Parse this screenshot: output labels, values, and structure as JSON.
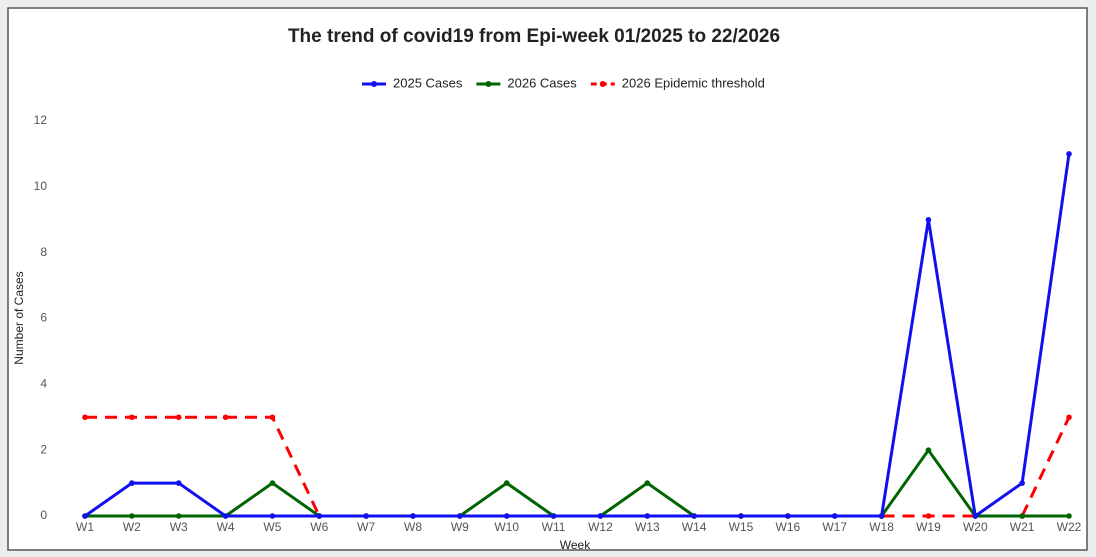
{
  "chart_data": {
    "type": "line",
    "title": "The trend of covid19 from Epi-week 01/2025 to 22/2026",
    "x_label": "Week",
    "y_label": "Number of Cases",
    "categories": [
      "W1",
      "W2",
      "W3",
      "W4",
      "W5",
      "W6",
      "W7",
      "W8",
      "W9",
      "W10",
      "W11",
      "W12",
      "W13",
      "W14",
      "W15",
      "W16",
      "W17",
      "W18",
      "W19",
      "W20",
      "W21",
      "W22"
    ],
    "series": [
      {
        "name": "2025 Cases",
        "color": "#1010f0",
        "linestyle": "solid",
        "values": [
          0,
          1,
          1,
          0,
          0,
          0,
          0,
          0,
          0,
          0,
          0,
          0,
          0,
          0,
          0,
          0,
          0,
          0,
          9,
          0,
          1,
          11
        ]
      },
      {
        "name": "2026 Cases",
        "color": "#006400",
        "linestyle": "solid",
        "values": [
          0,
          0,
          0,
          0,
          1,
          0,
          0,
          0,
          0,
          1,
          0,
          0,
          1,
          0,
          0,
          0,
          0,
          0,
          2,
          0,
          0,
          0
        ]
      },
      {
        "name": "2026 Epidemic threshold",
        "color": "#ff0000",
        "linestyle": "dashed",
        "values": [
          3,
          3,
          3,
          3,
          3,
          0,
          0,
          0,
          0,
          0,
          0,
          0,
          0,
          0,
          0,
          0,
          0,
          0,
          0,
          0,
          0,
          3
        ]
      }
    ],
    "ylim": [
      0,
      12
    ],
    "yticks": [
      0,
      2,
      4,
      6,
      8,
      10,
      12
    ],
    "grid": false,
    "legend": "top"
  }
}
